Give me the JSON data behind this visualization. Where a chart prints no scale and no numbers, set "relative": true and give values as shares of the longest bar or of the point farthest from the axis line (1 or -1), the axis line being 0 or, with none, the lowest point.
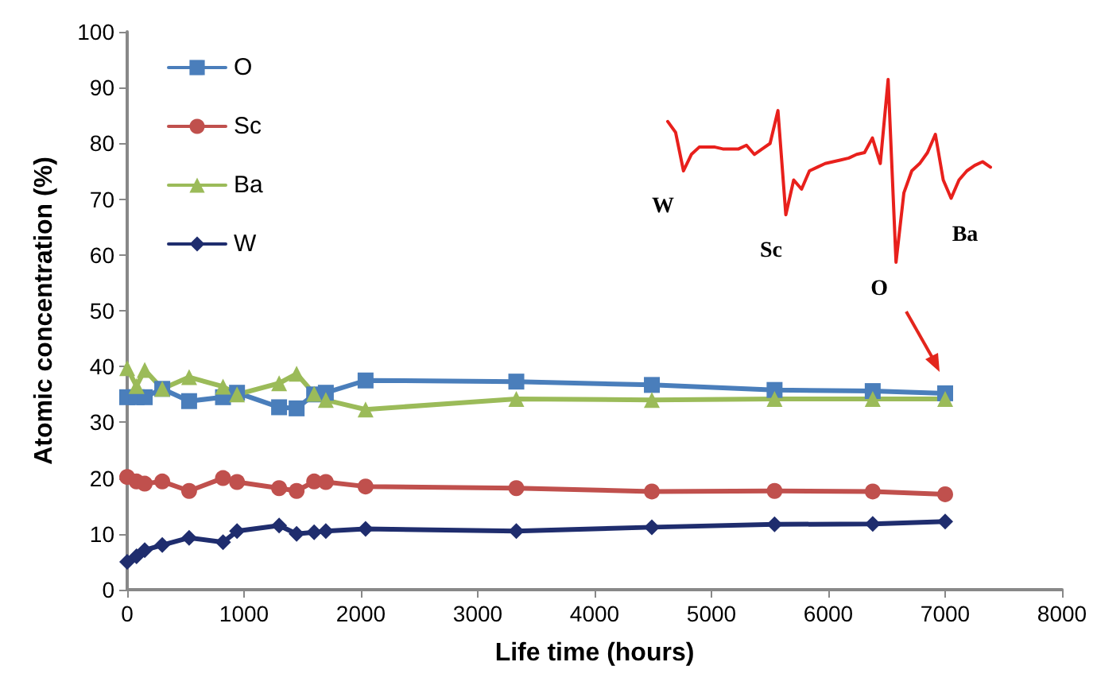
{
  "chart_data": [
    {
      "type": "line",
      "xlabel": "Life time (hours)",
      "ylabel": "Atomic concentration (%)",
      "x": [
        0,
        80,
        150,
        300,
        530,
        820,
        940,
        1300,
        1450,
        1600,
        1700,
        2040,
        3330,
        4490,
        5540,
        6380,
        7000
      ],
      "series": [
        {
          "name": "O",
          "color": "#4a7ebb",
          "marker": "square",
          "values": [
            34.5,
            34.5,
            34.5,
            36,
            33.8,
            34.5,
            35.3,
            32.7,
            32.5,
            35,
            35.3,
            37.5,
            37.3,
            36.7,
            35.8,
            35.6,
            35.2
          ]
        },
        {
          "name": "Sc",
          "color": "#c0504d",
          "marker": "circle",
          "values": [
            20.2,
            19.4,
            19,
            19.4,
            17.7,
            20,
            19.3,
            18.2,
            17.7,
            19.4,
            19.3,
            18.5,
            18.2,
            17.6,
            17.7,
            17.6,
            17.1
          ]
        },
        {
          "name": "Ba",
          "color": "#9bbb59",
          "marker": "triangle",
          "values": [
            39.7,
            36.5,
            39.4,
            36,
            38.1,
            36.4,
            35,
            37,
            38.7,
            35.1,
            34,
            32.3,
            34.2,
            34,
            34.2,
            34.2,
            34.2
          ]
        },
        {
          "name": "W",
          "color": "#1f2d6e",
          "marker": "diamond",
          "values": [
            5,
            6,
            7.1,
            8,
            9.3,
            8.5,
            10.5,
            11.5,
            10,
            10.3,
            10.5,
            10.9,
            10.5,
            11.2,
            11.7,
            11.8,
            12.2
          ]
        }
      ],
      "xlim": [
        0,
        8000
      ],
      "xticks": [
        0,
        1000,
        2000,
        3000,
        4000,
        5000,
        6000,
        7000,
        8000
      ],
      "ylim": [
        0,
        100
      ],
      "yticks": [
        0,
        10,
        20,
        30,
        40,
        50,
        60,
        70,
        80,
        90,
        100
      ],
      "grid": false,
      "legend": "top left",
      "line_style": "solid"
    },
    {
      "type": "line",
      "relative": true,
      "line_style": "solid",
      "categories": [
        null,
        null,
        null,
        null,
        null,
        null,
        null,
        null,
        null,
        null,
        null,
        null,
        null,
        null,
        null,
        null,
        null,
        null,
        null,
        null,
        null,
        null,
        null,
        null,
        null,
        null,
        null,
        null,
        null,
        null,
        null,
        null,
        null,
        null,
        null,
        null,
        null,
        null,
        null,
        null,
        null,
        null
      ],
      "series": [
        {
          "color": "#e8201c",
          "values": [
            0.77,
            0.71,
            0.5,
            0.59,
            0.63,
            0.63,
            0.63,
            0.62,
            0.62,
            0.62,
            0.64,
            0.59,
            0.62,
            0.65,
            0.83,
            0.26,
            0.45,
            0.4,
            0.5,
            0.52,
            0.54,
            0.55,
            0.56,
            0.57,
            0.59,
            0.6,
            0.68,
            0.54,
            1,
            0,
            0.38,
            0.5,
            0.54,
            0.6,
            0.7,
            0.45,
            0.35,
            0.45,
            0.5,
            0.53,
            0.55,
            0.52
          ]
        }
      ],
      "annotations": [
        "W",
        "Sc",
        "O",
        "Ba"
      ]
    }
  ]
}
